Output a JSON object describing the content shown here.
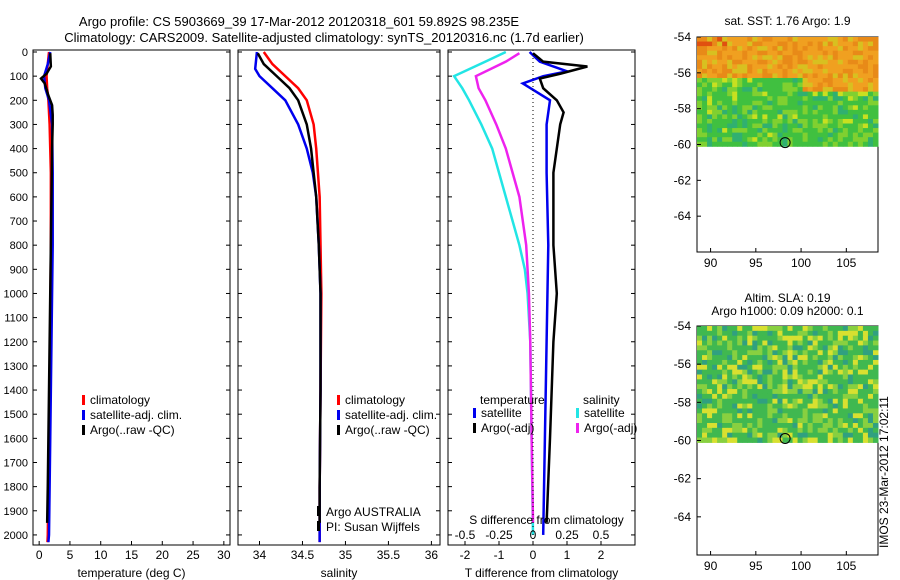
{
  "header": {
    "line1": "Argo profile: CS 5903669_39 17-Mar-2012 20120318_601 59.892S 98.235E",
    "line2": "Climatology: CARS2009. Satellite-adjusted climatology: synTS_20120316.nc (1.7d earlier)"
  },
  "side_stamp": "IMOS 23-Mar-2012 17:02:11",
  "colors": {
    "climatology": "#ff0000",
    "satellite": "#0000ee",
    "argo": "#000000",
    "cyan": "#22e5e5",
    "magenta": "#ee22ee"
  },
  "chart_data": [
    {
      "type": "line",
      "xlabel": "temperature (deg C)",
      "ylabel": "",
      "xlim": [
        -1,
        31
      ],
      "ylim": [
        2050,
        0
      ],
      "xticks": [
        "0",
        "5",
        "10",
        "15",
        "20",
        "25",
        "30"
      ],
      "xtick_values": [
        0,
        5,
        10,
        15,
        20,
        25,
        30
      ],
      "yticks": [
        "0",
        "100",
        "200",
        "300",
        "400",
        "500",
        "600",
        "700",
        "800",
        "900",
        "1000",
        "1100",
        "1200",
        "1300",
        "1400",
        "1500",
        "1600",
        "1700",
        "1800",
        "1900",
        "2000"
      ],
      "legend": [
        "climatology",
        "satellite-adj. clim.",
        "Argo(..raw -QC)"
      ],
      "series": [
        {
          "name": "climatology",
          "depth": [
            0,
            50,
            100,
            150,
            200,
            300,
            500,
            800,
            1200,
            1600,
            2000,
            2030
          ],
          "values": [
            1.6,
            1.4,
            1.2,
            1.3,
            1.5,
            1.7,
            1.9,
            1.9,
            1.8,
            1.6,
            1.4,
            1.35
          ]
        },
        {
          "name": "satellite-adj. clim.",
          "depth": [
            0,
            50,
            100,
            150,
            200,
            300,
            500,
            800,
            1200,
            1600,
            2000,
            2030
          ],
          "values": [
            1.8,
            1.4,
            0.8,
            1.0,
            1.6,
            2.1,
            2.2,
            2.2,
            2.0,
            1.8,
            1.6,
            1.5
          ]
        },
        {
          "name": "Argo(..raw -QC)",
          "depth": [
            5,
            60,
            90,
            110,
            130,
            180,
            220,
            260,
            300,
            400,
            600,
            800,
            1000,
            1200,
            1400,
            1600,
            1800,
            1950
          ],
          "values": [
            1.8,
            1.9,
            1.2,
            0.3,
            0.9,
            1.5,
            2.1,
            2.2,
            2.2,
            2.1,
            2.0,
            1.9,
            1.8,
            1.7,
            1.6,
            1.5,
            1.4,
            1.3
          ]
        }
      ]
    },
    {
      "type": "line",
      "xlabel": "salinity",
      "xlim": [
        33.75,
        36.1
      ],
      "ylim": [
        2050,
        0
      ],
      "xticks": [
        "34",
        "34.5",
        "35",
        "35.5",
        "36"
      ],
      "xtick_values": [
        34,
        34.5,
        35,
        35.5,
        36
      ],
      "legend": [
        "climatology",
        "satellite-adj. clim.",
        "Argo(..raw -QC)"
      ],
      "annotation": [
        "Argo AUSTRALIA",
        "PI: Susan Wijffels"
      ],
      "series": [
        {
          "name": "climatology",
          "depth": [
            0,
            50,
            100,
            150,
            200,
            300,
            400,
            500,
            600,
            800,
            1000,
            1400,
            1800,
            2030
          ],
          "values": [
            34.05,
            34.15,
            34.3,
            34.45,
            34.55,
            34.63,
            34.66,
            34.68,
            34.7,
            34.71,
            34.72,
            34.71,
            34.7,
            34.7
          ]
        },
        {
          "name": "satellite-adj. clim.",
          "depth": [
            0,
            70,
            100,
            150,
            200,
            300,
            400,
            500,
            600,
            800,
            1000,
            1400,
            1800,
            2030
          ],
          "values": [
            33.97,
            33.95,
            34.0,
            34.15,
            34.3,
            34.45,
            34.55,
            34.62,
            34.66,
            34.69,
            34.71,
            34.71,
            34.7,
            34.7
          ]
        },
        {
          "name": "Argo(..raw -QC)",
          "depth": [
            5,
            50,
            100,
            150,
            200,
            300,
            400,
            500,
            600,
            800,
            1000,
            1400,
            1800,
            1950
          ],
          "values": [
            33.98,
            34.05,
            34.2,
            34.35,
            34.45,
            34.55,
            34.6,
            34.63,
            34.66,
            34.69,
            34.71,
            34.71,
            34.7,
            34.7
          ]
        }
      ]
    },
    {
      "type": "line",
      "xlabel": "T difference from climatology",
      "xlabel_top": "S difference from climatology",
      "xlim": [
        -2.5,
        3.0
      ],
      "ylim": [
        2050,
        0
      ],
      "xticks": [
        "-2",
        "-1",
        "0",
        "1",
        "2"
      ],
      "xtick_values": [
        -2,
        -1,
        0,
        1,
        2
      ],
      "sticks": [
        "-0.5",
        "-0.25",
        "0",
        "0.25",
        "0.5"
      ],
      "stick_values": [
        -0.5,
        -0.25,
        0,
        0.25,
        0.5
      ],
      "legend_temperature": "temperature",
      "legend_salinity": "salinity",
      "legend_left": [
        "satellite",
        "Argo(-adj)"
      ],
      "legend_right": [
        "satellite",
        "Argo(-adj)"
      ],
      "series": [
        {
          "name": "temperature satellite",
          "depth": [
            0,
            40,
            80,
            100,
            130,
            200,
            300,
            500,
            800,
            1200,
            1600,
            2000
          ],
          "values": [
            -0.1,
            0.2,
            1.0,
            0.3,
            -0.3,
            0.5,
            0.4,
            0.4,
            0.45,
            0.4,
            0.35,
            0.3
          ]
        },
        {
          "name": "temperature Argo(-adj)",
          "depth": [
            5,
            40,
            60,
            90,
            110,
            150,
            200,
            250,
            300,
            500,
            800,
            1000,
            1200,
            1600,
            1950
          ],
          "values": [
            0.0,
            0.3,
            1.6,
            0.8,
            0.2,
            0.3,
            0.7,
            0.9,
            0.8,
            0.6,
            0.6,
            0.7,
            0.6,
            0.5,
            0.4
          ]
        },
        {
          "name": "salinity satellite",
          "depth": [
            0,
            40,
            100,
            150,
            200,
            300,
            400,
            500,
            600,
            700,
            800,
            900,
            1000,
            1200,
            1600,
            2000
          ],
          "values": [
            -0.2,
            -0.35,
            -0.58,
            -0.52,
            -0.47,
            -0.38,
            -0.3,
            -0.25,
            -0.2,
            -0.15,
            -0.1,
            -0.06,
            -0.04,
            -0.02,
            -0.01,
            0.0
          ]
        },
        {
          "name": "salinity Argo(-adj)",
          "depth": [
            5,
            40,
            100,
            150,
            200,
            300,
            400,
            500,
            600,
            800,
            1000,
            1200,
            1600,
            1950
          ],
          "values": [
            -0.1,
            -0.2,
            -0.42,
            -0.4,
            -0.35,
            -0.27,
            -0.2,
            -0.15,
            -0.1,
            -0.05,
            -0.03,
            -0.02,
            -0.01,
            0.0
          ]
        }
      ]
    },
    {
      "type": "heatmap",
      "title": "sat. SST: 1.76 Argo: 1.9",
      "xlim": [
        88.5,
        108.5
      ],
      "ylim": [
        -66,
        -54
      ],
      "xticks": [
        "90",
        "95",
        "100",
        "105"
      ],
      "xtick_values": [
        90,
        95,
        100,
        105
      ],
      "yticks": [
        "-54",
        "-56",
        "-58",
        "-60",
        "-62",
        "-64"
      ],
      "ytick_values": [
        -54,
        -56,
        -58,
        -60,
        -62,
        -64
      ],
      "data_ylim": [
        -60.1,
        -54
      ],
      "marker": {
        "lon": 98.235,
        "lat": -59.892
      }
    },
    {
      "type": "heatmap",
      "title": "Altim. SLA: 0.19",
      "subtitle": "Argo h1000: 0.09 h2000: 0.1",
      "xlim": [
        88.5,
        108.5
      ],
      "ylim": [
        -66,
        -54
      ],
      "xticks": [
        "90",
        "95",
        "100",
        "105"
      ],
      "xtick_values": [
        90,
        95,
        100,
        105
      ],
      "yticks": [
        "-54",
        "-56",
        "-58",
        "-60",
        "-62",
        "-64"
      ],
      "ytick_values": [
        -54,
        -56,
        -58,
        -60,
        -62,
        -64
      ],
      "data_ylim": [
        -60.1,
        -54
      ],
      "marker": {
        "lon": 98.235,
        "lat": -59.892
      }
    }
  ]
}
